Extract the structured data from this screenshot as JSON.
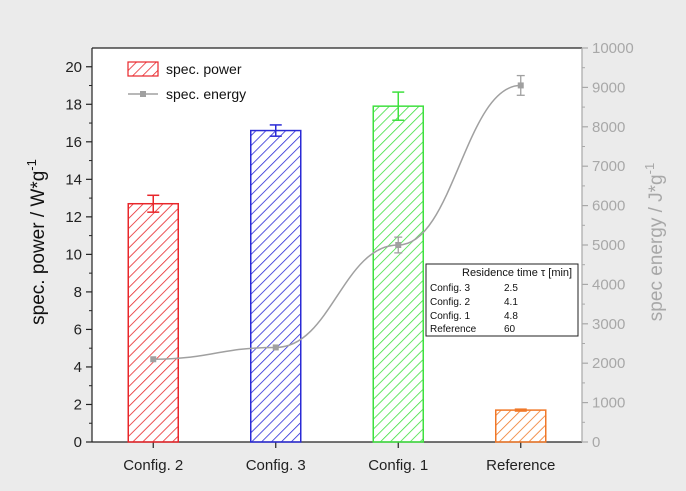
{
  "chart_data": {
    "type": "bar",
    "categories": [
      "Config. 2",
      "Config. 3",
      "Config. 1",
      "Reference"
    ],
    "series": [
      {
        "name": "spec. power",
        "type": "bar",
        "axis": "left",
        "values": [
          12.7,
          16.6,
          17.9,
          1.7
        ],
        "errors": [
          0.45,
          0.3,
          0.75,
          0.05
        ],
        "colors": [
          "#e8262a",
          "#2a2ad6",
          "#3ee03e",
          "#f07828"
        ]
      },
      {
        "name": "spec. energy",
        "type": "line",
        "axis": "right",
        "values": [
          2100,
          2400,
          5000,
          9050
        ],
        "errors": [
          0,
          0,
          200,
          250
        ],
        "color": "#a0a0a0"
      }
    ],
    "ylabel": "spec. power / W*g",
    "ylabel_sup": "-1",
    "ylim": [
      0,
      21
    ],
    "yticks": [
      0,
      2,
      4,
      6,
      8,
      10,
      12,
      14,
      16,
      18,
      20
    ],
    "y2label": "spec energy / J*g",
    "y2label_sup": "-1",
    "y2lim": [
      0,
      10000
    ],
    "y2ticks": [
      0,
      1000,
      2000,
      3000,
      4000,
      5000,
      6000,
      7000,
      8000,
      9000,
      10000
    ],
    "legend": {
      "position": "top-left",
      "entries": [
        "spec. power",
        "spec. energy"
      ]
    },
    "table": {
      "header": "Residence time  τ [min]",
      "rows": [
        {
          "label": "Config. 3",
          "value": "2.5"
        },
        {
          "label": "Config. 2",
          "value": "4.1"
        },
        {
          "label": "Config. 1",
          "value": "4.8"
        },
        {
          "label": "Reference",
          "value": "60"
        }
      ]
    }
  }
}
